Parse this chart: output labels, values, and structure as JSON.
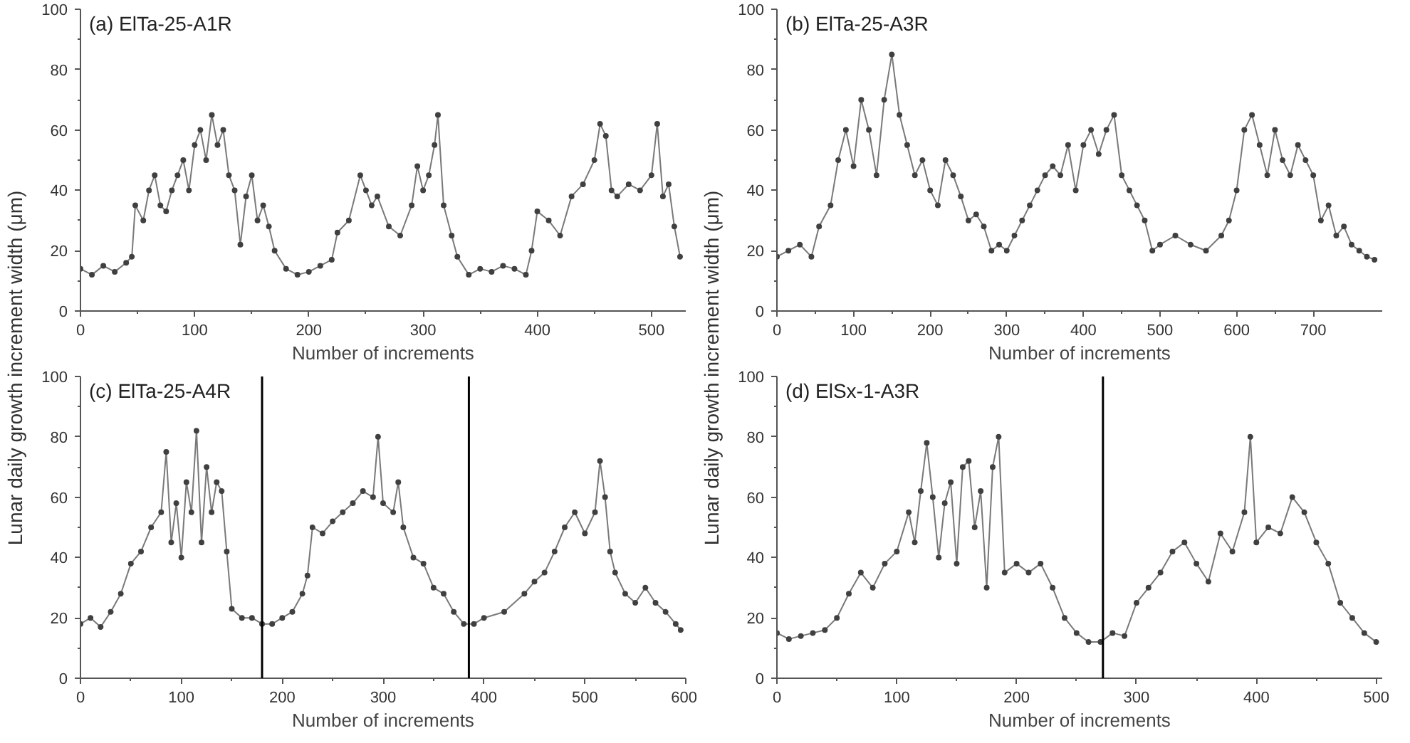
{
  "chart_data": [
    {
      "type": "line",
      "title": "(a) ElTa-25-A1R",
      "xlabel": "Number of increments",
      "ylabel": "Lunar daily growth increment width (μm)",
      "xlim": [
        0,
        530
      ],
      "xticks": [
        0,
        100,
        200,
        300,
        400,
        500
      ],
      "ylim": [
        0,
        100
      ],
      "yticks": [
        0,
        20,
        40,
        60,
        80,
        100
      ],
      "marker": "circle",
      "grid": false,
      "series": [
        {
          "color": "#404040",
          "x": [
            0,
            10,
            20,
            30,
            40,
            45,
            48,
            55,
            60,
            65,
            70,
            75,
            80,
            85,
            90,
            95,
            100,
            105,
            110,
            115,
            120,
            125,
            130,
            135,
            140,
            145,
            150,
            155,
            160,
            165,
            170,
            180,
            190,
            200,
            210,
            220,
            225,
            235,
            245,
            250,
            255,
            260,
            270,
            280,
            290,
            295,
            300,
            305,
            310,
            313,
            318,
            325,
            330,
            340,
            350,
            360,
            370,
            380,
            390,
            395,
            400,
            410,
            420,
            430,
            440,
            450,
            455,
            460,
            465,
            470,
            480,
            490,
            500,
            505,
            510,
            515,
            520,
            525
          ],
          "values": [
            14,
            12,
            15,
            13,
            16,
            18,
            35,
            30,
            40,
            45,
            35,
            33,
            40,
            45,
            50,
            40,
            55,
            60,
            50,
            65,
            55,
            60,
            45,
            40,
            22,
            38,
            45,
            30,
            35,
            28,
            20,
            14,
            12,
            13,
            15,
            17,
            26,
            30,
            45,
            40,
            35,
            38,
            28,
            25,
            35,
            48,
            40,
            45,
            55,
            65,
            35,
            25,
            18,
            12,
            14,
            13,
            15,
            14,
            12,
            20,
            33,
            30,
            25,
            38,
            42,
            50,
            62,
            58,
            40,
            38,
            42,
            40,
            45,
            62,
            38,
            42,
            28,
            18
          ]
        }
      ]
    },
    {
      "type": "line",
      "title": "(b) ElTa-25-A3R",
      "xlabel": "Number of increments",
      "ylabel": "Lunar daily growth increment width (μm)",
      "xlim": [
        0,
        790
      ],
      "xticks": [
        0,
        100,
        200,
        300,
        400,
        500,
        600,
        700
      ],
      "ylim": [
        0,
        100
      ],
      "yticks": [
        0,
        20,
        40,
        60,
        80,
        100
      ],
      "marker": "circle",
      "grid": false,
      "series": [
        {
          "color": "#404040",
          "x": [
            0,
            15,
            30,
            45,
            55,
            70,
            80,
            90,
            100,
            110,
            120,
            130,
            140,
            150,
            160,
            170,
            180,
            190,
            200,
            210,
            220,
            230,
            240,
            250,
            260,
            270,
            280,
            290,
            300,
            310,
            320,
            330,
            340,
            350,
            360,
            370,
            380,
            390,
            400,
            410,
            420,
            430,
            440,
            450,
            460,
            470,
            480,
            490,
            500,
            520,
            540,
            560,
            580,
            590,
            600,
            610,
            620,
            630,
            640,
            650,
            660,
            670,
            680,
            690,
            700,
            710,
            720,
            730,
            740,
            750,
            760,
            770,
            780
          ],
          "values": [
            18,
            20,
            22,
            18,
            28,
            35,
            50,
            60,
            48,
            70,
            60,
            45,
            70,
            85,
            65,
            55,
            45,
            50,
            40,
            35,
            50,
            45,
            38,
            30,
            32,
            28,
            20,
            22,
            20,
            25,
            30,
            35,
            40,
            45,
            48,
            45,
            55,
            40,
            55,
            60,
            52,
            60,
            65,
            45,
            40,
            35,
            30,
            20,
            22,
            25,
            22,
            20,
            25,
            30,
            40,
            60,
            65,
            55,
            45,
            60,
            50,
            45,
            55,
            50,
            45,
            30,
            35,
            25,
            28,
            22,
            20,
            18,
            17
          ]
        }
      ]
    },
    {
      "type": "line",
      "title": "(c) ElTa-25-A4R",
      "xlabel": "Number of increments",
      "xlim": [
        0,
        600
      ],
      "xticks": [
        0,
        100,
        200,
        300,
        400,
        500,
        600
      ],
      "ylim": [
        0,
        100
      ],
      "yticks": [
        0,
        20,
        40,
        60,
        80,
        100
      ],
      "marker": "circle",
      "grid": false,
      "ref_lines": [
        {
          "axis": "x",
          "value": 180,
          "color": "#000000"
        },
        {
          "axis": "x",
          "value": 385,
          "color": "#000000"
        }
      ],
      "series": [
        {
          "color": "#404040",
          "x": [
            0,
            10,
            20,
            30,
            40,
            50,
            60,
            70,
            80,
            85,
            90,
            95,
            100,
            105,
            110,
            115,
            120,
            125,
            130,
            135,
            140,
            145,
            150,
            160,
            170,
            180,
            190,
            200,
            210,
            220,
            225,
            230,
            240,
            250,
            260,
            270,
            280,
            290,
            295,
            300,
            310,
            315,
            320,
            330,
            340,
            350,
            360,
            370,
            380,
            390,
            400,
            420,
            440,
            450,
            460,
            470,
            480,
            490,
            500,
            510,
            515,
            520,
            525,
            530,
            540,
            550,
            560,
            570,
            580,
            590,
            595
          ],
          "values": [
            18,
            20,
            17,
            22,
            28,
            38,
            42,
            50,
            55,
            75,
            45,
            58,
            40,
            65,
            55,
            82,
            45,
            70,
            55,
            65,
            62,
            42,
            23,
            20,
            20,
            18,
            18,
            20,
            22,
            28,
            34,
            50,
            48,
            52,
            55,
            58,
            62,
            60,
            80,
            58,
            55,
            65,
            50,
            40,
            38,
            30,
            28,
            22,
            18,
            18,
            20,
            22,
            28,
            32,
            35,
            42,
            50,
            55,
            48,
            55,
            72,
            60,
            42,
            35,
            28,
            25,
            30,
            25,
            22,
            18,
            16
          ]
        }
      ]
    },
    {
      "type": "line",
      "title": "(d) ElSx-1-A3R",
      "xlabel": "Number of increments",
      "xlim": [
        0,
        505
      ],
      "xticks": [
        0,
        100,
        200,
        300,
        400,
        500
      ],
      "ylim": [
        0,
        100
      ],
      "yticks": [
        0,
        20,
        40,
        60,
        80,
        100
      ],
      "marker": "circle",
      "grid": false,
      "ref_lines": [
        {
          "axis": "x",
          "value": 272,
          "color": "#000000"
        }
      ],
      "series": [
        {
          "color": "#404040",
          "x": [
            0,
            10,
            20,
            30,
            40,
            50,
            60,
            70,
            80,
            90,
            100,
            110,
            115,
            120,
            125,
            130,
            135,
            140,
            145,
            150,
            155,
            160,
            165,
            170,
            175,
            180,
            185,
            190,
            200,
            210,
            220,
            230,
            240,
            250,
            260,
            270,
            280,
            290,
            300,
            310,
            320,
            330,
            340,
            350,
            360,
            370,
            380,
            390,
            395,
            400,
            410,
            420,
            430,
            440,
            450,
            460,
            470,
            480,
            490,
            500
          ],
          "values": [
            15,
            13,
            14,
            15,
            16,
            20,
            28,
            35,
            30,
            38,
            42,
            55,
            45,
            62,
            78,
            60,
            40,
            58,
            65,
            38,
            70,
            72,
            50,
            62,
            30,
            70,
            80,
            35,
            38,
            35,
            38,
            30,
            20,
            15,
            12,
            12,
            15,
            14,
            25,
            30,
            35,
            42,
            45,
            38,
            32,
            48,
            42,
            55,
            80,
            45,
            50,
            48,
            60,
            55,
            45,
            38,
            25,
            20,
            15,
            12
          ]
        }
      ]
    }
  ]
}
